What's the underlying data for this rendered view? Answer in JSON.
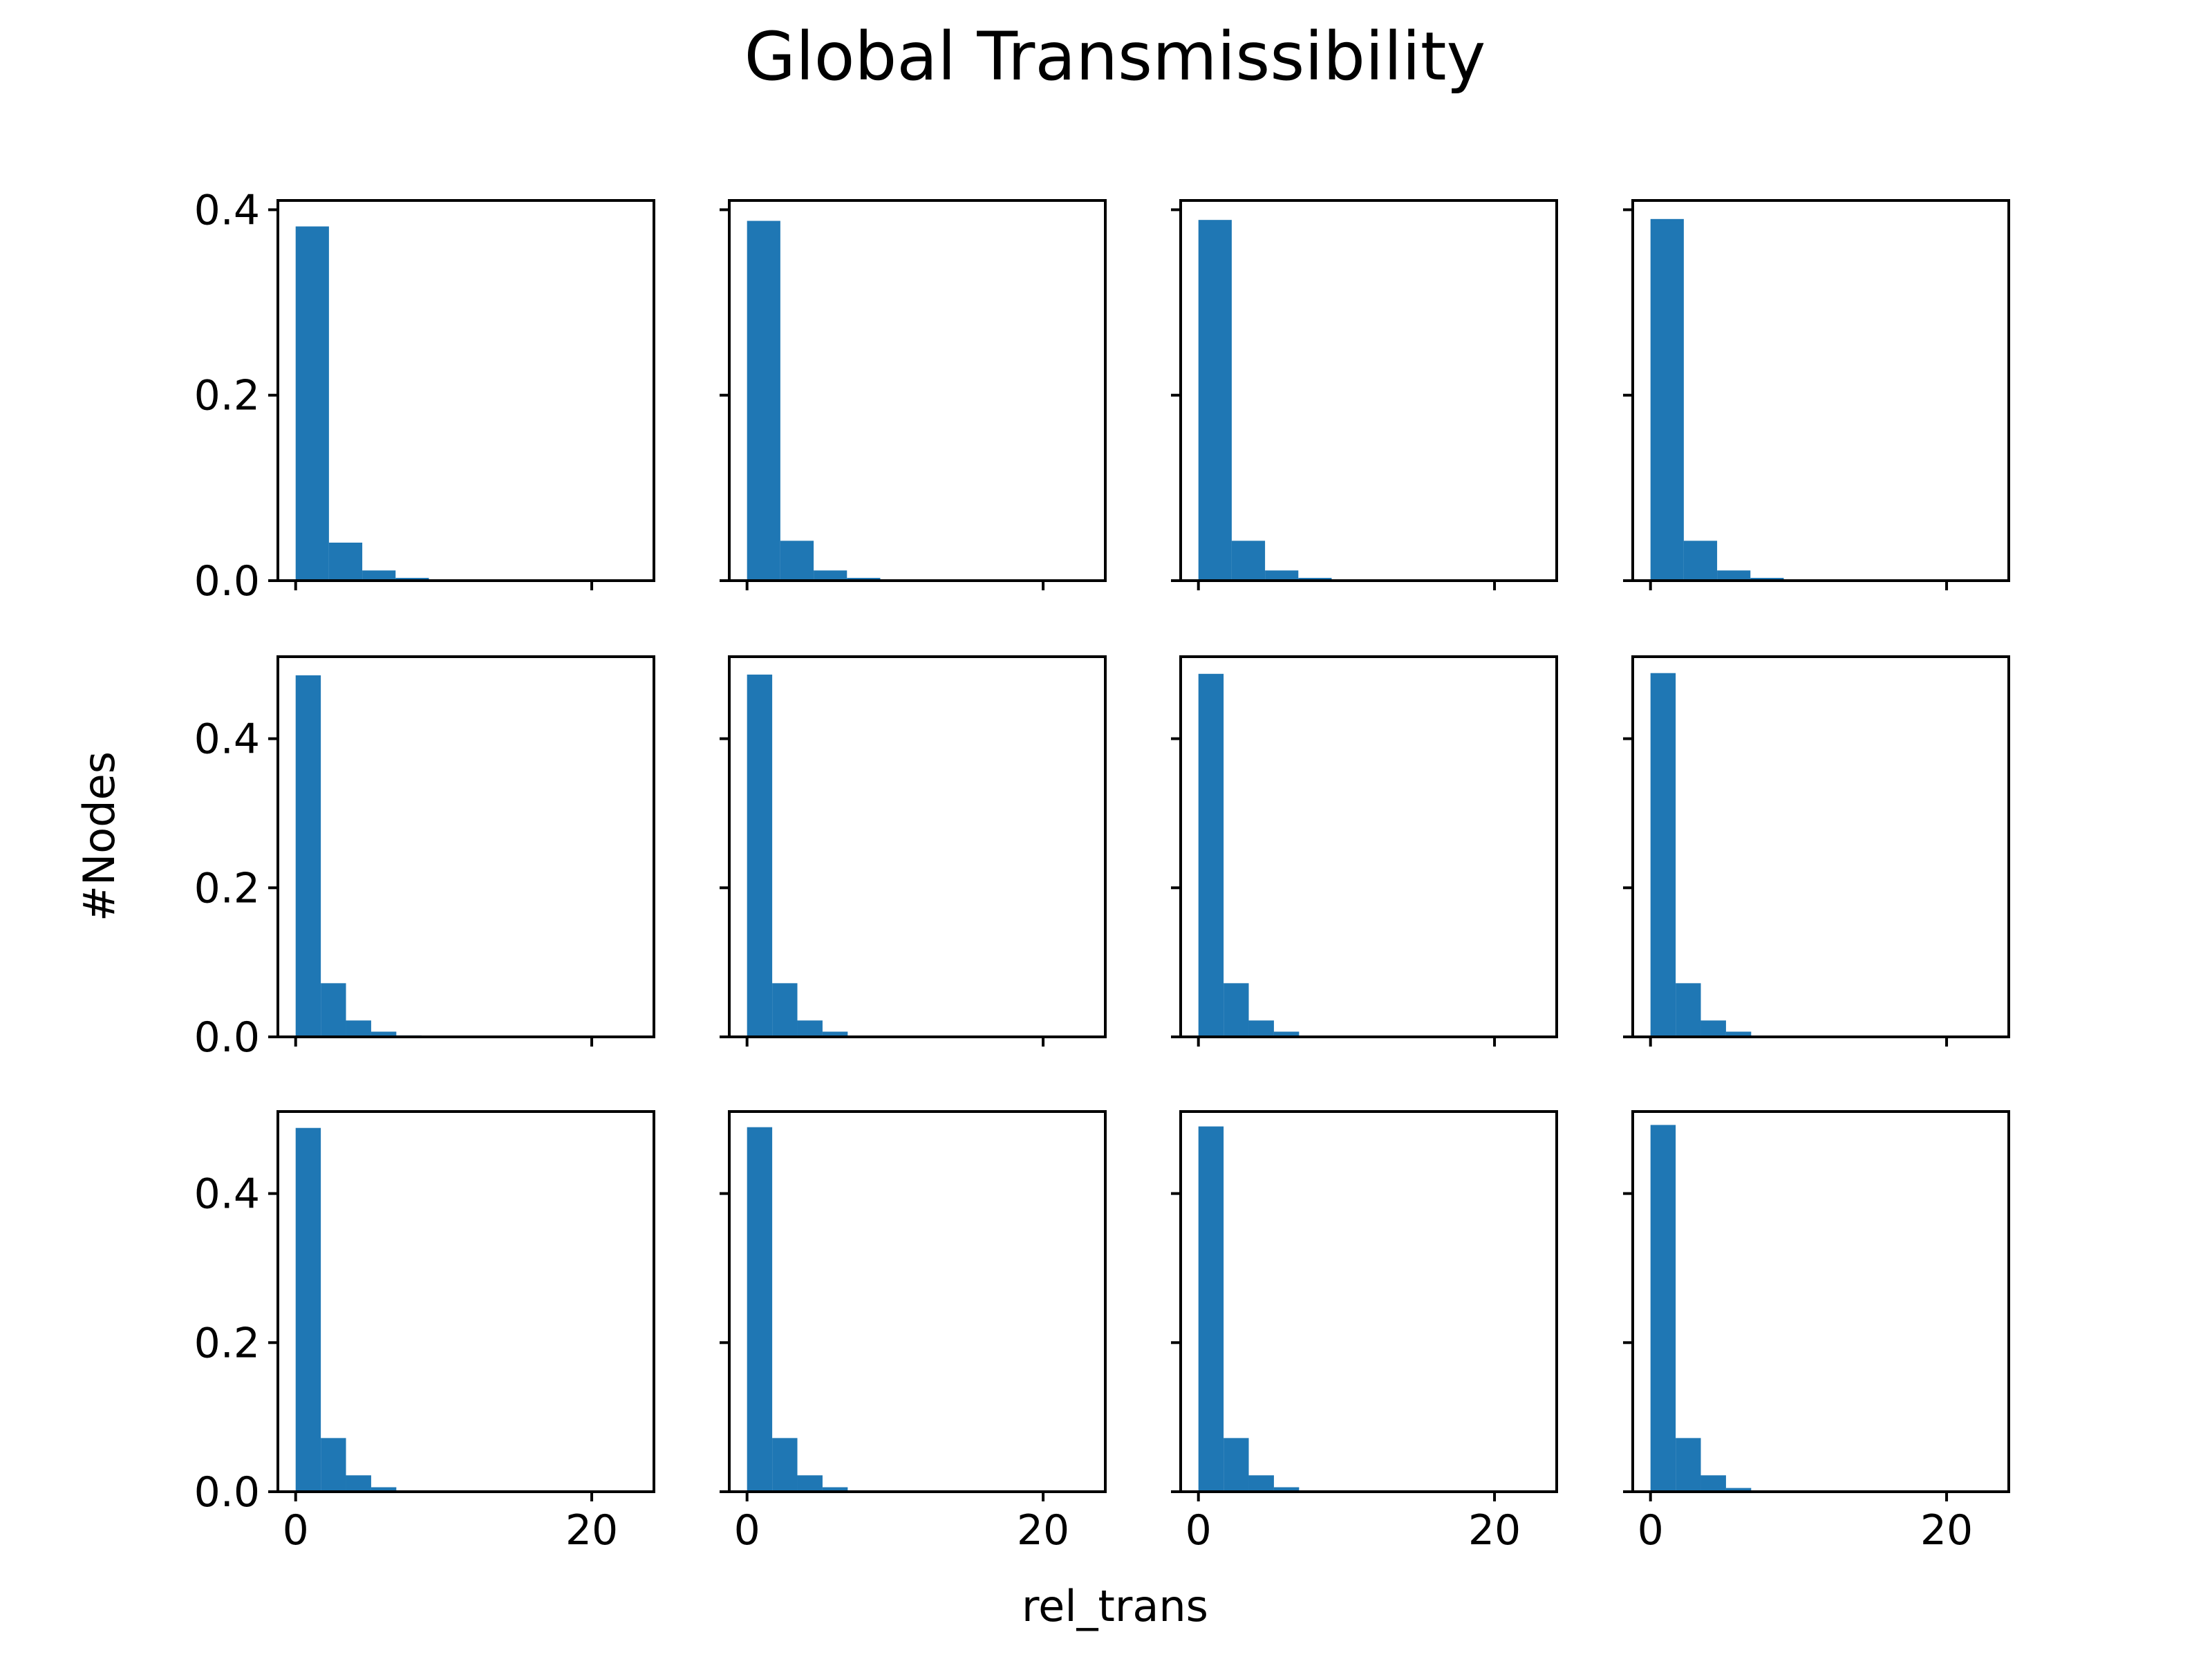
{
  "chart_data": {
    "type": "bar",
    "title": "Global Transmissibility",
    "xlabel": "rel_trans",
    "ylabel": "#Nodes",
    "layout": {
      "rows": 3,
      "cols": 4,
      "sharex": true,
      "sharey": "row"
    },
    "xlim": [
      -1.2,
      24.2
    ],
    "x_ticks": [
      0,
      20
    ],
    "row_ylim": [
      [
        0,
        0.41
      ],
      [
        0,
        0.51
      ],
      [
        0,
        0.51
      ]
    ],
    "row_y_ticks": [
      [
        0.0,
        0.2,
        0.4
      ],
      [
        0.0,
        0.2,
        0.4
      ],
      [
        0.0,
        0.2,
        0.4
      ]
    ],
    "row_y_tick_labels": [
      [
        "0.0",
        "0.2",
        "0.4"
      ],
      [
        "0.0",
        "0.2",
        "0.4"
      ],
      [
        "0.0",
        "0.2",
        "0.4"
      ]
    ],
    "x_tick_labels": [
      "0",
      "20"
    ],
    "bar_color": "#1f77b4",
    "panels": [
      {
        "bin_width": 2.25,
        "values": [
          0.382,
          0.041,
          0.011,
          0.003,
          0.0008,
          0,
          0,
          0,
          0,
          0
        ]
      },
      {
        "bin_width": 2.25,
        "values": [
          0.388,
          0.043,
          0.011,
          0.003,
          0.0008,
          0,
          0,
          0,
          0,
          0
        ]
      },
      {
        "bin_width": 2.25,
        "values": [
          0.389,
          0.043,
          0.011,
          0.003,
          0.0008,
          0,
          0,
          0,
          0,
          0
        ]
      },
      {
        "bin_width": 2.25,
        "values": [
          0.39,
          0.043,
          0.011,
          0.003,
          0.0008,
          0,
          0,
          0,
          0,
          0
        ]
      },
      {
        "bin_width": 1.7,
        "values": [
          0.485,
          0.072,
          0.022,
          0.007,
          0.002,
          0.0005,
          0,
          0,
          0,
          0
        ]
      },
      {
        "bin_width": 1.7,
        "values": [
          0.486,
          0.072,
          0.022,
          0.007,
          0.001,
          0,
          0,
          0,
          0,
          0
        ]
      },
      {
        "bin_width": 1.7,
        "values": [
          0.487,
          0.072,
          0.022,
          0.007,
          0.001,
          0,
          0,
          0,
          0,
          0
        ]
      },
      {
        "bin_width": 1.7,
        "values": [
          0.488,
          0.072,
          0.022,
          0.007,
          0,
          0,
          0,
          0,
          0,
          0
        ]
      },
      {
        "bin_width": 1.7,
        "values": [
          0.488,
          0.072,
          0.022,
          0.006,
          0,
          0,
          0,
          0,
          0,
          0
        ]
      },
      {
        "bin_width": 1.7,
        "values": [
          0.489,
          0.072,
          0.022,
          0.006,
          0,
          0,
          0,
          0,
          0,
          0
        ]
      },
      {
        "bin_width": 1.7,
        "values": [
          0.49,
          0.072,
          0.022,
          0.006,
          0,
          0,
          0,
          0,
          0,
          0
        ]
      },
      {
        "bin_width": 1.7,
        "values": [
          0.492,
          0.072,
          0.022,
          0.005,
          0,
          0,
          0,
          0,
          0,
          0
        ]
      }
    ]
  }
}
